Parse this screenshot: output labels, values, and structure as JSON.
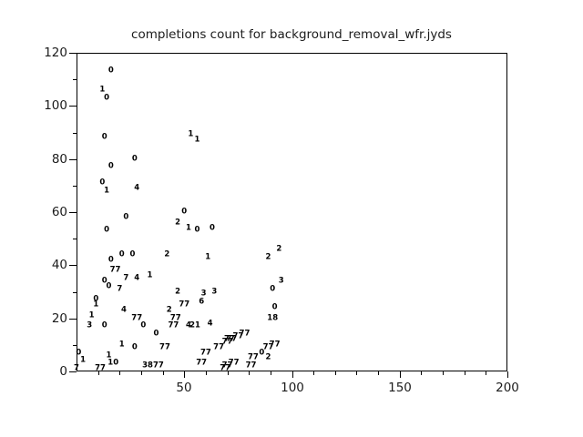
{
  "colors": {
    "background": "#ffffff",
    "axis": "#000000",
    "text": "#1c1c1c",
    "marker_text": "#000000"
  },
  "chart_data": {
    "type": "scatter",
    "title": "completions count for background_removal_wfr.jyds",
    "xlabel": "",
    "ylabel": "",
    "xlim": [
      0,
      200
    ],
    "ylim": [
      0,
      120
    ],
    "x_major_ticks": [
      50,
      100,
      150,
      200
    ],
    "x_minor_step": 10,
    "y_major_ticks": [
      0,
      20,
      40,
      60,
      80,
      100,
      120
    ],
    "y_minor_step": 10,
    "legend": null,
    "grid": false,
    "marker_style": "text-label",
    "points": [
      {
        "x": 16,
        "y": 113,
        "label": "0"
      },
      {
        "x": 12,
        "y": 106,
        "label": "1"
      },
      {
        "x": 14,
        "y": 103,
        "label": "0"
      },
      {
        "x": 13,
        "y": 88,
        "label": "0"
      },
      {
        "x": 53,
        "y": 89,
        "label": "1"
      },
      {
        "x": 56,
        "y": 87,
        "label": "1"
      },
      {
        "x": 27,
        "y": 80,
        "label": "0"
      },
      {
        "x": 16,
        "y": 77,
        "label": "0"
      },
      {
        "x": 12,
        "y": 71,
        "label": "0"
      },
      {
        "x": 28,
        "y": 69,
        "label": "4"
      },
      {
        "x": 14,
        "y": 68,
        "label": "1"
      },
      {
        "x": 23,
        "y": 58,
        "label": "0"
      },
      {
        "x": 14,
        "y": 53,
        "label": "0"
      },
      {
        "x": 50,
        "y": 60,
        "label": "0"
      },
      {
        "x": 47,
        "y": 56,
        "label": "2"
      },
      {
        "x": 52,
        "y": 54,
        "label": "1"
      },
      {
        "x": 56,
        "y": 53,
        "label": "0"
      },
      {
        "x": 63,
        "y": 54,
        "label": "0"
      },
      {
        "x": 21,
        "y": 44,
        "label": "0"
      },
      {
        "x": 26,
        "y": 44,
        "label": "0"
      },
      {
        "x": 42,
        "y": 44,
        "label": "2"
      },
      {
        "x": 16,
        "y": 42,
        "label": "0"
      },
      {
        "x": 61,
        "y": 43,
        "label": "1"
      },
      {
        "x": 18,
        "y": 38,
        "label": "77"
      },
      {
        "x": 23,
        "y": 35,
        "label": "7"
      },
      {
        "x": 28,
        "y": 35,
        "label": "4"
      },
      {
        "x": 34,
        "y": 36,
        "label": "1"
      },
      {
        "x": 13,
        "y": 34,
        "label": "0"
      },
      {
        "x": 15,
        "y": 32,
        "label": "0"
      },
      {
        "x": 20,
        "y": 31,
        "label": "7"
      },
      {
        "x": 47,
        "y": 30,
        "label": "2"
      },
      {
        "x": 59,
        "y": 29,
        "label": "3"
      },
      {
        "x": 64,
        "y": 30,
        "label": "3"
      },
      {
        "x": 9,
        "y": 27,
        "label": "0"
      },
      {
        "x": 9,
        "y": 25,
        "label": "1"
      },
      {
        "x": 58,
        "y": 26,
        "label": "6"
      },
      {
        "x": 94,
        "y": 46,
        "label": "2"
      },
      {
        "x": 89,
        "y": 43,
        "label": "2"
      },
      {
        "x": 95,
        "y": 34,
        "label": "3"
      },
      {
        "x": 91,
        "y": 31,
        "label": "0"
      },
      {
        "x": 92,
        "y": 24,
        "label": "0"
      },
      {
        "x": 91,
        "y": 20,
        "label": "18"
      },
      {
        "x": 7,
        "y": 21,
        "label": "1"
      },
      {
        "x": 22,
        "y": 23,
        "label": "4"
      },
      {
        "x": 28,
        "y": 20,
        "label": "77"
      },
      {
        "x": 43,
        "y": 23,
        "label": "2"
      },
      {
        "x": 50,
        "y": 25,
        "label": "77"
      },
      {
        "x": 46,
        "y": 20,
        "label": "77"
      },
      {
        "x": 6,
        "y": 17,
        "label": "3"
      },
      {
        "x": 13,
        "y": 17,
        "label": "0"
      },
      {
        "x": 31,
        "y": 17,
        "label": "0"
      },
      {
        "x": 45,
        "y": 17,
        "label": "77"
      },
      {
        "x": 52,
        "y": 17,
        "label": "4"
      },
      {
        "x": 55,
        "y": 17,
        "label": "21"
      },
      {
        "x": 62,
        "y": 18,
        "label": "4"
      },
      {
        "x": 37,
        "y": 14,
        "label": "0"
      },
      {
        "x": 21,
        "y": 10,
        "label": "1"
      },
      {
        "x": 27,
        "y": 9,
        "label": "0"
      },
      {
        "x": 41,
        "y": 9,
        "label": "77"
      },
      {
        "x": 1,
        "y": 7,
        "label": "0"
      },
      {
        "x": 15,
        "y": 6,
        "label": "1"
      },
      {
        "x": 3,
        "y": 4,
        "label": "1"
      },
      {
        "x": 17,
        "y": 3,
        "label": "10"
      },
      {
        "x": 0,
        "y": 1,
        "label": "7"
      },
      {
        "x": 11,
        "y": 1,
        "label": "77"
      },
      {
        "x": 33,
        "y": 2,
        "label": "38"
      },
      {
        "x": 38,
        "y": 2,
        "label": "77"
      },
      {
        "x": 78,
        "y": 14,
        "label": "77"
      },
      {
        "x": 75,
        "y": 13,
        "label": "77"
      },
      {
        "x": 72,
        "y": 12,
        "label": "77"
      },
      {
        "x": 71,
        "y": 12,
        "label": "77"
      },
      {
        "x": 70,
        "y": 11,
        "label": "77"
      },
      {
        "x": 66,
        "y": 9,
        "label": "77"
      },
      {
        "x": 60,
        "y": 7,
        "label": "77"
      },
      {
        "x": 58,
        "y": 3,
        "label": "77"
      },
      {
        "x": 69,
        "y": 1,
        "label": "77"
      },
      {
        "x": 73,
        "y": 3,
        "label": "77"
      },
      {
        "x": 81,
        "y": 2,
        "label": "77"
      },
      {
        "x": 70,
        "y": 2,
        "label": "77"
      },
      {
        "x": 82,
        "y": 5,
        "label": "77"
      },
      {
        "x": 86,
        "y": 7,
        "label": "0"
      },
      {
        "x": 89,
        "y": 5,
        "label": "2"
      },
      {
        "x": 92,
        "y": 10,
        "label": "77"
      },
      {
        "x": 89,
        "y": 9,
        "label": "77"
      }
    ]
  }
}
